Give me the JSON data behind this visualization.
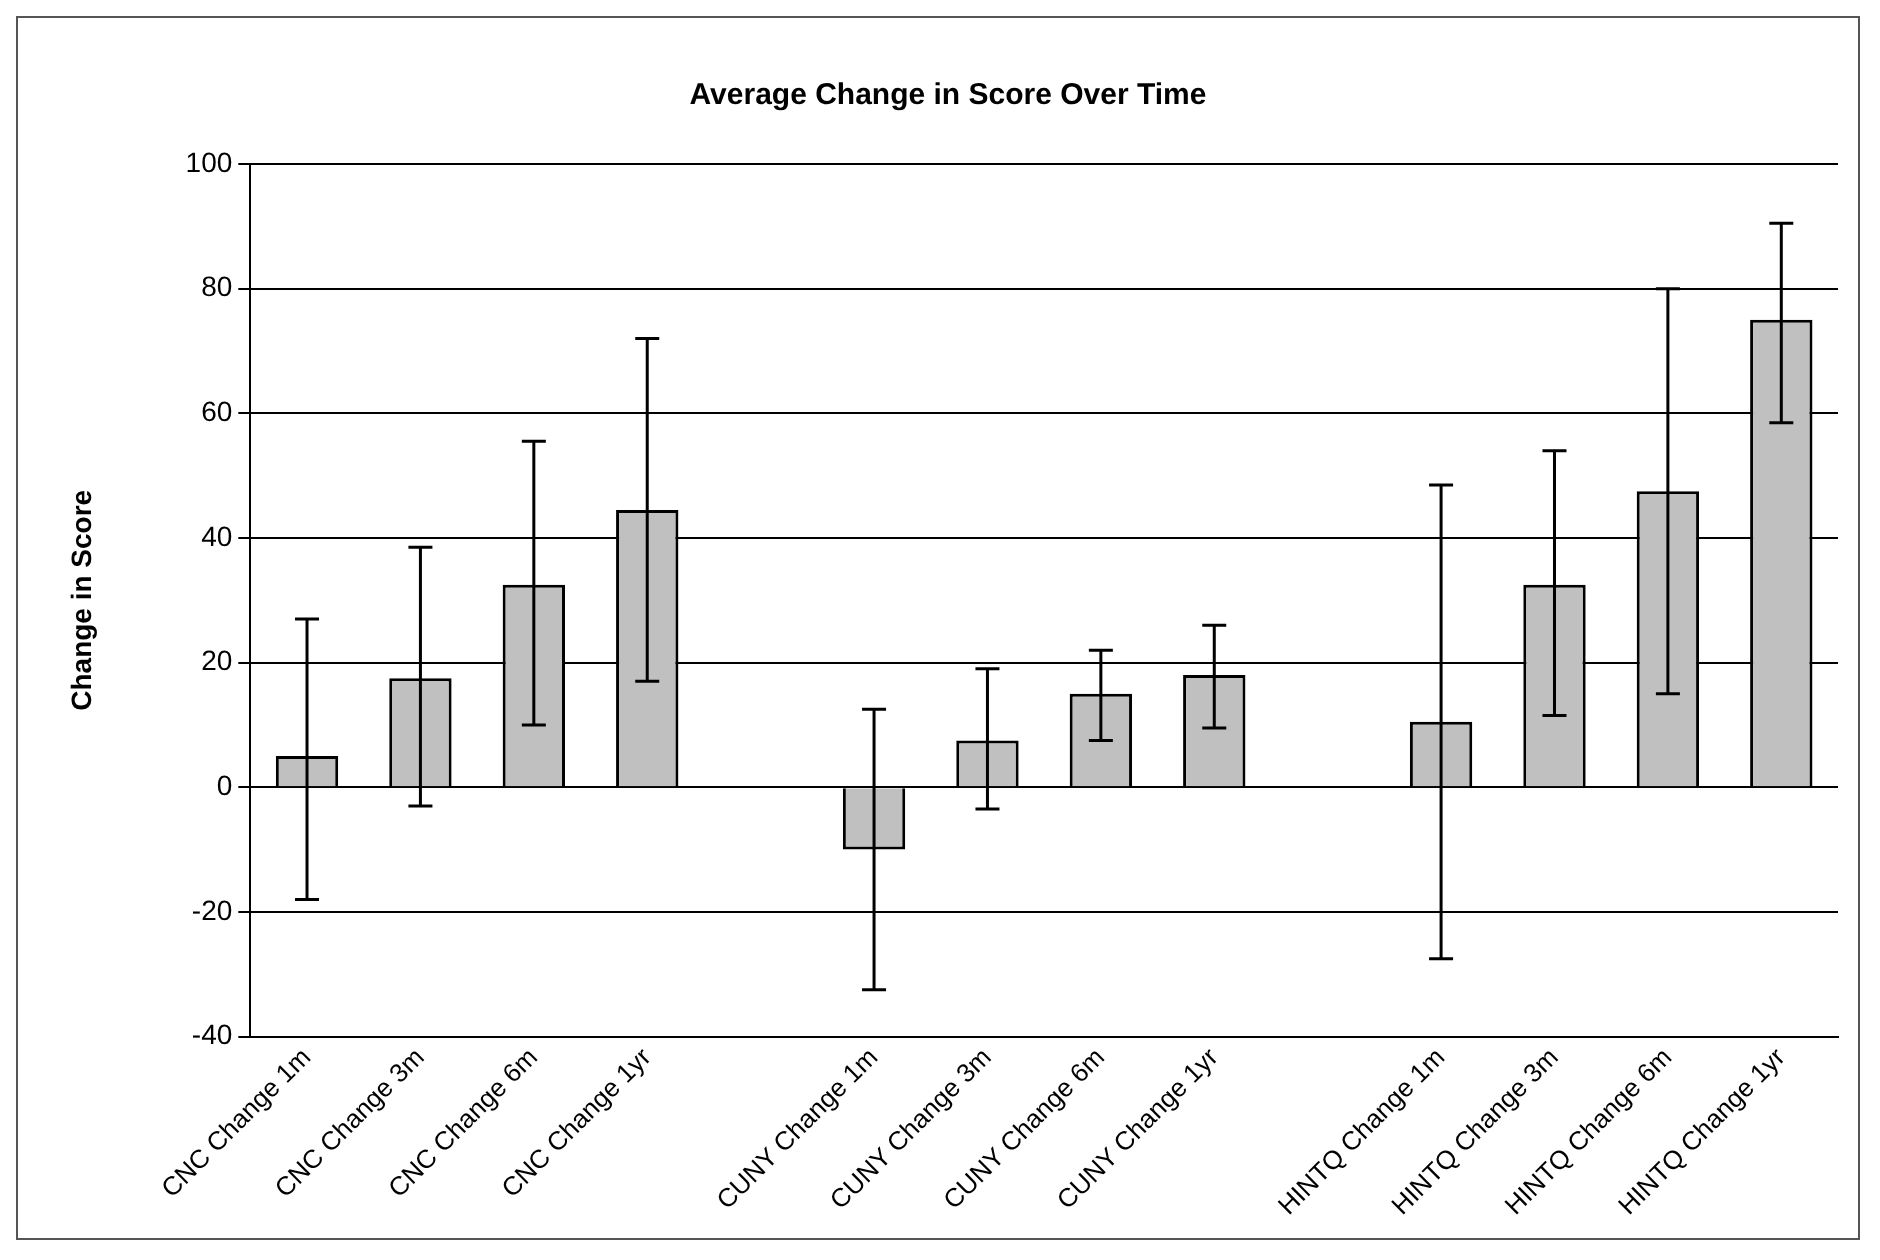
{
  "chart_data": {
    "type": "bar",
    "title": "Average Change in Score Over Time",
    "ylabel": "Change in Score",
    "categories": [
      "CNC Change 1m",
      "CNC Change 3m",
      "CNC Change 6m",
      "CNC Change 1yr",
      null,
      "CUNY Change 1m",
      "CUNY Change 3m",
      "CUNY Change 6m",
      "CUNY Change 1yr",
      null,
      "HINTQ Change 1m",
      "HINTQ Change 3m",
      "HINTQ Change 6m",
      "HINTQ Change 1yr"
    ],
    "values": [
      5,
      17.5,
      32.5,
      44.5,
      null,
      -10,
      7.5,
      15,
      18,
      null,
      10.5,
      32.5,
      47.5,
      75
    ],
    "errors": [
      [
        -18,
        27
      ],
      [
        -3,
        38.5
      ],
      [
        10,
        55.5
      ],
      [
        17,
        72
      ],
      null,
      [
        -32.5,
        12.5
      ],
      [
        -3.5,
        19
      ],
      [
        7.5,
        22
      ],
      [
        9.5,
        26
      ],
      null,
      [
        -27.5,
        48.5
      ],
      [
        11.5,
        54
      ],
      [
        15,
        80
      ],
      [
        58.5,
        90.5
      ]
    ],
    "color": "#c0c0c0",
    "ylim": [
      -40,
      100
    ],
    "yticks": [
      -40,
      -20,
      0,
      20,
      40,
      60,
      80,
      100
    ],
    "grid": "y",
    "legend": false
  }
}
